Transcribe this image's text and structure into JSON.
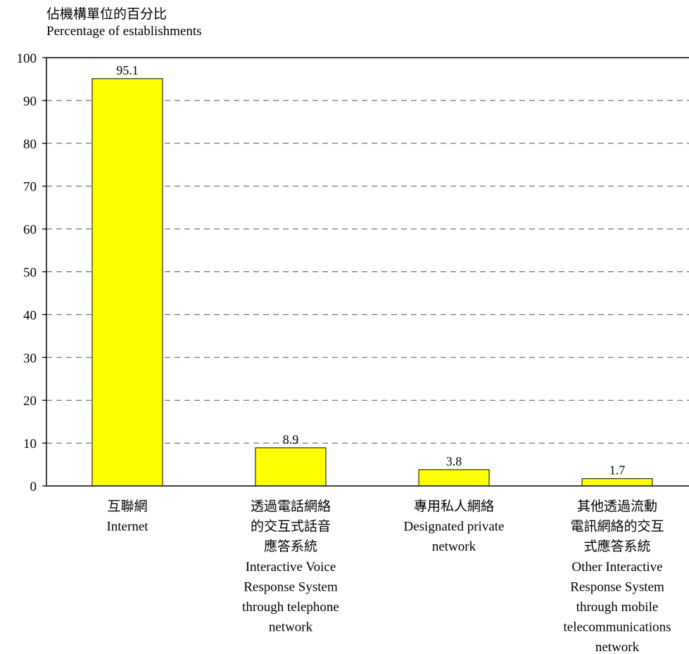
{
  "chart_data": {
    "type": "bar",
    "ylabel": [
      "佔機構單位的百分比",
      "Percentage of establishments"
    ],
    "ylim": [
      0,
      100
    ],
    "yticks": [
      0,
      10,
      20,
      30,
      40,
      50,
      60,
      70,
      80,
      90,
      100
    ],
    "grid": "horizontal-dashed",
    "bar_color": "#FFFF00",
    "categories": [
      [
        "互聯網",
        "Internet"
      ],
      [
        "透過電話網絡",
        "的交互式話音",
        "應答系統",
        "Interactive Voice",
        "Response System",
        "through telephone",
        "network"
      ],
      [
        "專用私人網絡",
        "Designated private",
        "network"
      ],
      [
        "其他透過流動",
        "電訊網絡的交互",
        "式應答系統",
        "Other Interactive",
        "Response System",
        "through mobile",
        "telecommunications",
        "network"
      ]
    ],
    "values": [
      95.1,
      8.9,
      3.8,
      1.7
    ],
    "value_labels": [
      "95.1",
      "8.9",
      "3.8",
      "1.7"
    ]
  }
}
